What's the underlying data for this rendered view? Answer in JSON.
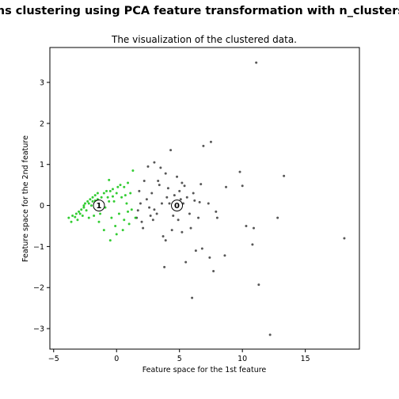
{
  "suptitle": "ans clustering using PCA feature transformation with n_clusters",
  "chart_data": {
    "type": "scatter",
    "title": "The visualization of the clustered data.",
    "xlabel": "Feature space for the 1st feature",
    "ylabel": "Feature space for the 2nd feature",
    "xlim": [
      -5.3,
      19.3
    ],
    "ylim": [
      -3.5,
      3.85
    ],
    "xticks": [
      -5,
      0,
      5,
      10,
      15
    ],
    "yticks": [
      -3,
      -2,
      -1,
      0,
      1,
      2,
      3
    ],
    "xtick_labels": [
      "−5",
      "0",
      "5",
      "10",
      "15"
    ],
    "ytick_labels": [
      "−3",
      "−2",
      "−1",
      "0",
      "1",
      "2",
      "3"
    ],
    "series": [
      {
        "cluster": 0,
        "color": "#3a3a3a",
        "points": [
          [
            11.1,
            3.48
          ],
          [
            7.5,
            1.55
          ],
          [
            6.9,
            1.45
          ],
          [
            4.3,
            1.35
          ],
          [
            13.3,
            0.72
          ],
          [
            9.8,
            0.82
          ],
          [
            3.0,
            1.05
          ],
          [
            2.5,
            0.95
          ],
          [
            3.5,
            0.92
          ],
          [
            10.0,
            0.48
          ],
          [
            8.7,
            0.45
          ],
          [
            6.7,
            0.52
          ],
          [
            5.2,
            0.55
          ],
          [
            4.8,
            0.7
          ],
          [
            3.9,
            0.78
          ],
          [
            2.2,
            0.6
          ],
          [
            1.8,
            0.35
          ],
          [
            2.8,
            0.3
          ],
          [
            3.4,
            0.5
          ],
          [
            4.1,
            0.42
          ],
          [
            5.6,
            0.2
          ],
          [
            6.2,
            0.12
          ],
          [
            7.3,
            0.05
          ],
          [
            7.9,
            -0.15
          ],
          [
            8.0,
            -0.3
          ],
          [
            5.3,
            0.05
          ],
          [
            4.7,
            -0.1
          ],
          [
            3.6,
            0.05
          ],
          [
            2.6,
            -0.05
          ],
          [
            1.7,
            -0.12
          ],
          [
            1.6,
            -0.3
          ],
          [
            2.1,
            -0.55
          ],
          [
            2.9,
            -0.35
          ],
          [
            3.7,
            -0.75
          ],
          [
            4.4,
            -0.6
          ],
          [
            5.2,
            -0.65
          ],
          [
            5.9,
            -0.55
          ],
          [
            6.5,
            -0.3
          ],
          [
            6.8,
            -1.05
          ],
          [
            6.3,
            -1.1
          ],
          [
            5.5,
            -1.38
          ],
          [
            3.8,
            -1.5
          ],
          [
            7.4,
            -1.27
          ],
          [
            7.7,
            -1.6
          ],
          [
            8.6,
            -1.22
          ],
          [
            10.3,
            -0.5
          ],
          [
            10.9,
            -0.55
          ],
          [
            12.8,
            -0.3
          ],
          [
            10.8,
            -0.95
          ],
          [
            18.1,
            -0.8
          ],
          [
            11.3,
            -1.93
          ],
          [
            6.0,
            -2.25
          ],
          [
            12.2,
            -3.15
          ],
          [
            4.0,
            0.2
          ],
          [
            4.6,
            0.25
          ],
          [
            5.0,
            0.35
          ],
          [
            3.2,
            -0.2
          ],
          [
            2.4,
            0.15
          ],
          [
            1.9,
            0.05
          ],
          [
            5.8,
            -0.2
          ],
          [
            6.6,
            0.08
          ],
          [
            4.9,
            -0.35
          ],
          [
            3.3,
            0.6
          ],
          [
            2.7,
            -0.25
          ],
          [
            4.2,
            0.05
          ],
          [
            5.4,
            0.48
          ],
          [
            3.0,
            -0.1
          ],
          [
            2.0,
            -0.4
          ],
          [
            4.5,
            -0.25
          ],
          [
            3.9,
            -0.85
          ],
          [
            6.1,
            0.3
          ],
          [
            5.1,
            0.15
          ]
        ]
      },
      {
        "cluster": 1,
        "color": "#11c411",
        "points": [
          [
            -3.8,
            -0.3
          ],
          [
            -3.5,
            -0.25
          ],
          [
            -3.2,
            -0.2
          ],
          [
            -3.0,
            -0.15
          ],
          [
            -2.8,
            -0.1
          ],
          [
            -2.6,
            -0.05
          ],
          [
            -2.5,
            0.05
          ],
          [
            -2.3,
            0.1
          ],
          [
            -2.1,
            0.15
          ],
          [
            -1.9,
            0.2
          ],
          [
            -1.7,
            0.25
          ],
          [
            -1.5,
            0.3
          ],
          [
            -1.3,
            0.1
          ],
          [
            -1.1,
            0.0
          ],
          [
            -0.9,
            -0.05
          ],
          [
            -0.7,
            0.2
          ],
          [
            -0.5,
            0.35
          ],
          [
            -0.3,
            0.4
          ],
          [
            0.0,
            0.3
          ],
          [
            0.3,
            0.5
          ],
          [
            0.6,
            0.45
          ],
          [
            0.9,
            0.55
          ],
          [
            1.3,
            0.85
          ],
          [
            -0.6,
            0.62
          ],
          [
            0.4,
            0.2
          ],
          [
            0.8,
            0.05
          ],
          [
            1.2,
            -0.1
          ],
          [
            1.5,
            -0.3
          ],
          [
            1.0,
            -0.45
          ],
          [
            0.5,
            -0.6
          ],
          [
            0.0,
            -0.7
          ],
          [
            -0.5,
            -0.85
          ],
          [
            -1.0,
            -0.6
          ],
          [
            -1.4,
            -0.4
          ],
          [
            -1.8,
            -0.25
          ],
          [
            -2.2,
            -0.3
          ],
          [
            -2.7,
            -0.25
          ],
          [
            -3.1,
            -0.35
          ],
          [
            -3.6,
            -0.4
          ],
          [
            -2.0,
            0.0
          ],
          [
            -1.6,
            -0.05
          ],
          [
            -1.2,
            0.2
          ],
          [
            -0.8,
            0.35
          ],
          [
            -0.2,
            0.1
          ],
          [
            0.2,
            -0.2
          ],
          [
            -0.4,
            -0.3
          ],
          [
            -2.4,
            -0.12
          ],
          [
            -2.9,
            -0.2
          ],
          [
            -3.3,
            -0.28
          ],
          [
            -1.9,
            0.1
          ],
          [
            -1.5,
            0.15
          ],
          [
            -1.0,
            0.3
          ],
          [
            -0.6,
            0.1
          ],
          [
            0.1,
            0.45
          ],
          [
            0.7,
            0.25
          ],
          [
            1.1,
            0.3
          ],
          [
            -2.6,
            0.0
          ],
          [
            -2.2,
            0.05
          ],
          [
            -1.7,
            0.12
          ],
          [
            -1.3,
            -0.2
          ],
          [
            -0.1,
            -0.5
          ],
          [
            0.6,
            -0.35
          ],
          [
            0.9,
            -0.15
          ],
          [
            -0.3,
            0.22
          ]
        ]
      }
    ],
    "centers": [
      {
        "label": "0",
        "x": 4.8,
        "y": 0.0
      },
      {
        "label": "1",
        "x": -1.4,
        "y": 0.0
      }
    ]
  }
}
